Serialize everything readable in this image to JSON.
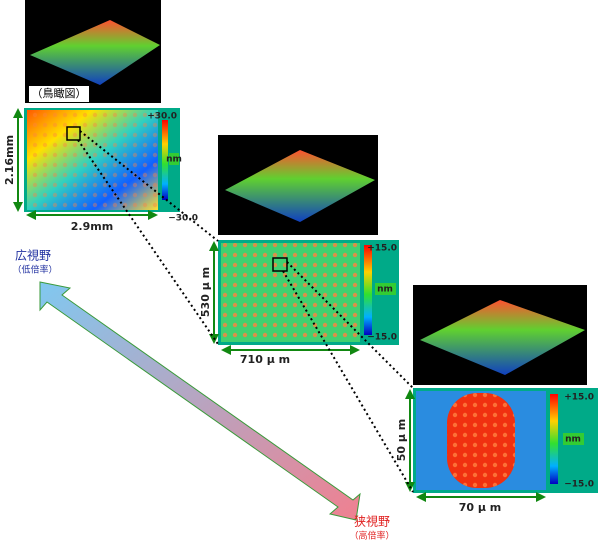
{
  "panels": [
    {
      "view_label": "（鳥瞰図）",
      "height_label": "2.16mm",
      "width_label": "2.9mm",
      "scale_max": "+30.0",
      "scale_unit": "nm",
      "scale_min": "−30.0"
    },
    {
      "height_label": "530 μ m",
      "width_label": "710 μ m",
      "scale_max": "+15.0",
      "scale_unit": "nm",
      "scale_min": "−15.0"
    },
    {
      "height_label": "50 μ m",
      "width_label": "70 μ m",
      "scale_max": "+15.0",
      "scale_unit": "nm",
      "scale_min": "−15.0"
    }
  ],
  "wide_field": {
    "label": "広視野",
    "sublabel": "（低倍率）"
  },
  "narrow_field": {
    "label": "狭視野",
    "sublabel": "（高倍率）"
  }
}
